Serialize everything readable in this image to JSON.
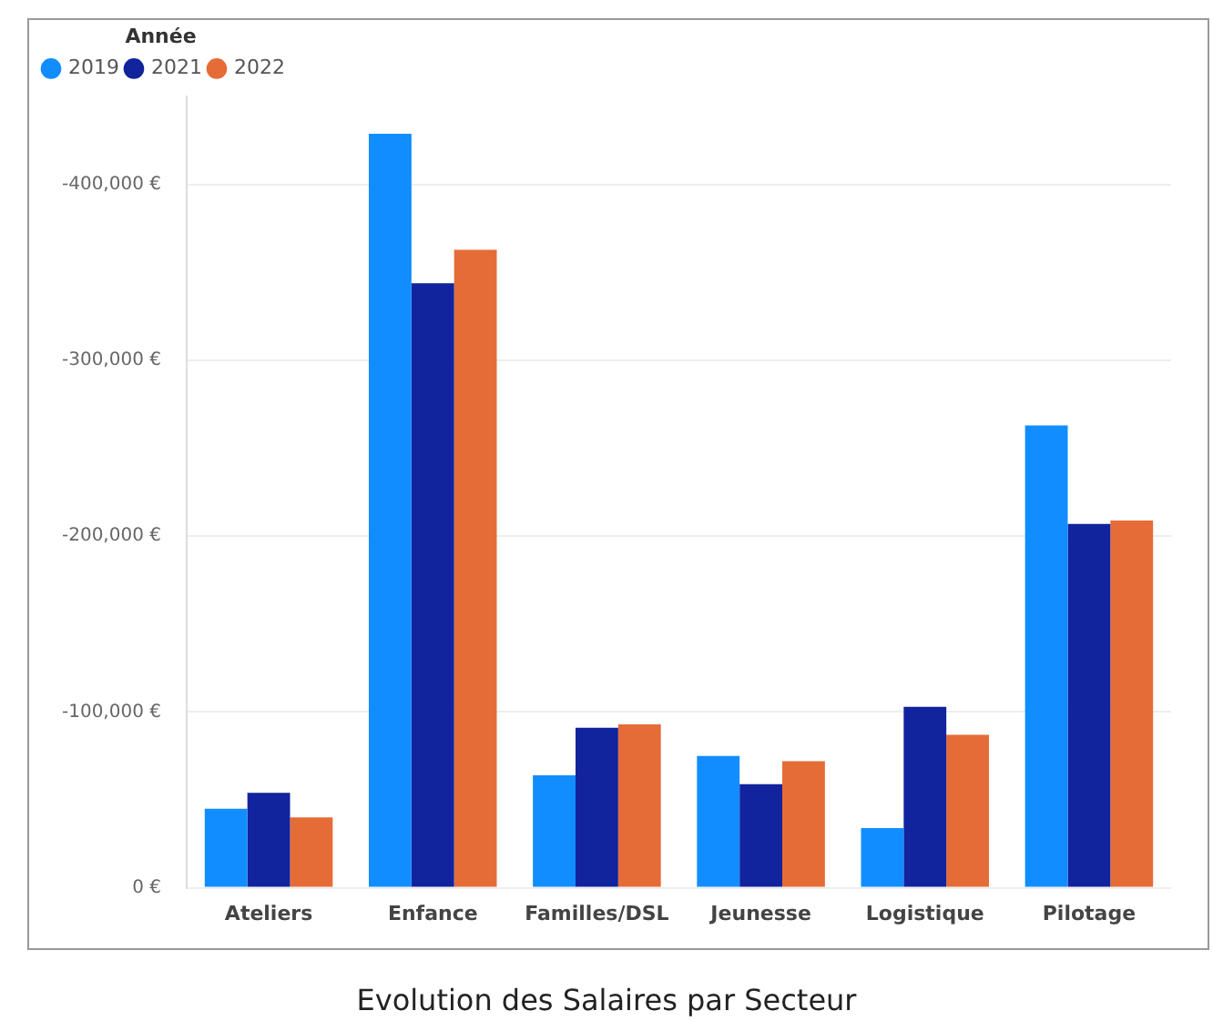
{
  "chart_data": {
    "type": "bar",
    "title": "Evolution des Salaires par Secteur",
    "legend_title": "Année",
    "legend": "top left",
    "grid": "y",
    "categories": [
      "Ateliers",
      "Enfance",
      "Familles/DSL",
      "Jeunesse",
      "Logistique",
      "Pilotage"
    ],
    "series": [
      {
        "name": "2019",
        "color": "#118dff",
        "values": [
          -45000,
          -429000,
          -64000,
          -75000,
          -34000,
          -263000
        ]
      },
      {
        "name": "2021",
        "color": "#12239e",
        "values": [
          -54000,
          -344000,
          -91000,
          -59000,
          -103000,
          -207000
        ]
      },
      {
        "name": "2022",
        "color": "#e66c37",
        "values": [
          -40000,
          -363000,
          -93000,
          -72000,
          -87000,
          -209000
        ]
      }
    ],
    "ylim": [
      0,
      -450000
    ],
    "yticks": [
      {
        "value": 0,
        "label": "0 €"
      },
      {
        "value": -100000,
        "label": "-100,000 €"
      },
      {
        "value": -200000,
        "label": "-200,000 €"
      },
      {
        "value": -300000,
        "label": "-300,000 €"
      },
      {
        "value": -400000,
        "label": "-400,000 €"
      }
    ]
  }
}
